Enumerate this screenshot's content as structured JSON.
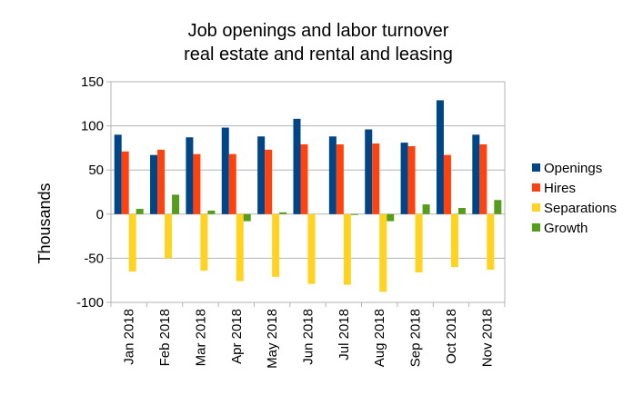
{
  "chart_data": {
    "type": "bar",
    "title_lines": [
      "Job openings and labor turnover",
      "real estate and rental and leasing"
    ],
    "xlabel": "",
    "ylabel": "Thousands",
    "categories": [
      "Jan 2018",
      "Feb 2018",
      "Mar 2018",
      "Apr 2018",
      "May 2018",
      "Jun 2018",
      "Jul 2018",
      "Aug 2018",
      "Sep 2018",
      "Oct 2018",
      "Nov 2018"
    ],
    "ylim": [
      -100,
      150
    ],
    "yticks": [
      -100,
      -50,
      0,
      50,
      100,
      150
    ],
    "grid": true,
    "legend_position": "right",
    "series": [
      {
        "name": "Openings",
        "color": "#004586",
        "values": [
          90,
          67,
          87,
          98,
          88,
          108,
          88,
          96,
          81,
          129,
          90
        ]
      },
      {
        "name": "Hires",
        "color": "#ff420e",
        "values": [
          71,
          73,
          68,
          68,
          73,
          79,
          79,
          80,
          77,
          67,
          79
        ]
      },
      {
        "name": "Separations",
        "color": "#ffd320",
        "values": [
          -65,
          -50,
          -64,
          -76,
          -71,
          -79,
          -80,
          -88,
          -66,
          -60,
          -63
        ]
      },
      {
        "name": "Growth",
        "color": "#579d1c",
        "values": [
          6,
          22,
          4,
          -8,
          2,
          0,
          -1,
          -8,
          11,
          7,
          16
        ]
      }
    ]
  }
}
